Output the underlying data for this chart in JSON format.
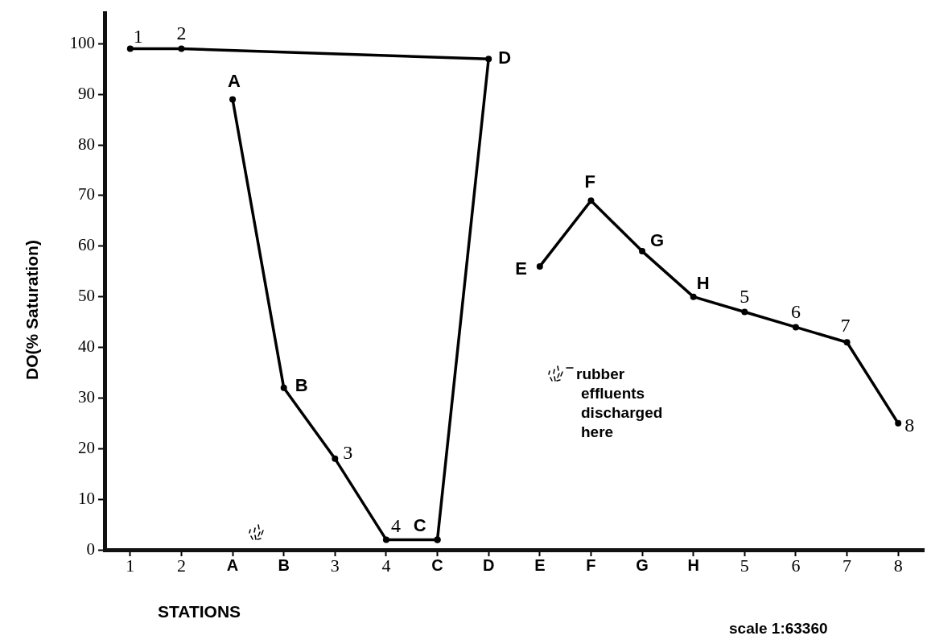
{
  "chart_data": {
    "type": "line",
    "xlabel": "STATIONS",
    "ylabel": "DO(% Saturation)",
    "categories": [
      "1",
      "2",
      "A",
      "B",
      "3",
      "4",
      "C",
      "D",
      "E",
      "F",
      "G",
      "H",
      "5",
      "6",
      "7",
      "8"
    ],
    "ylim": [
      0,
      106
    ],
    "yticks": [
      0,
      10,
      20,
      30,
      40,
      50,
      60,
      70,
      80,
      90,
      100
    ],
    "grid": false,
    "legend": false,
    "marker": "circle",
    "line_style": "solid",
    "series": [
      {
        "color": "#000000",
        "x": [
          "1",
          "2",
          "D",
          "C"
        ],
        "values": [
          99,
          99,
          97,
          2
        ]
      },
      {
        "color": "#000000",
        "x": [
          "A",
          "B",
          "3",
          "4",
          "C"
        ],
        "values": [
          89,
          32,
          18,
          2,
          2
        ]
      },
      {
        "color": "#000000",
        "x": [
          "E",
          "F",
          "G",
          "H",
          "5",
          "6",
          "7",
          "8"
        ],
        "values": [
          56,
          69,
          59,
          50,
          47,
          44,
          41,
          25
        ]
      }
    ],
    "annotations": [
      {
        "text": "1",
        "x": "1",
        "y": 99
      },
      {
        "text": "2",
        "x": "2",
        "y": 99
      },
      {
        "text": "A",
        "x": "A",
        "y": 89
      },
      {
        "text": "D",
        "x": "D",
        "y": 97
      },
      {
        "text": "B",
        "x": "B",
        "y": 32
      },
      {
        "text": "3",
        "x": "3",
        "y": 18
      },
      {
        "text": "4",
        "x": "4",
        "y": 2
      },
      {
        "text": "C",
        "x": "C",
        "y": 2
      },
      {
        "text": "E",
        "x": "E",
        "y": 56
      },
      {
        "text": "F",
        "x": "F",
        "y": 69
      },
      {
        "text": "G",
        "x": "G",
        "y": 59
      },
      {
        "text": "H",
        "x": "H",
        "y": 50
      },
      {
        "text": "5",
        "x": "5",
        "y": 47
      },
      {
        "text": "6",
        "x": "6",
        "y": 44
      },
      {
        "text": "7",
        "x": "7",
        "y": 41
      },
      {
        "text": "8",
        "x": "8",
        "y": 25
      },
      "rubber effluents discharged here",
      "scale 1:63360"
    ]
  }
}
